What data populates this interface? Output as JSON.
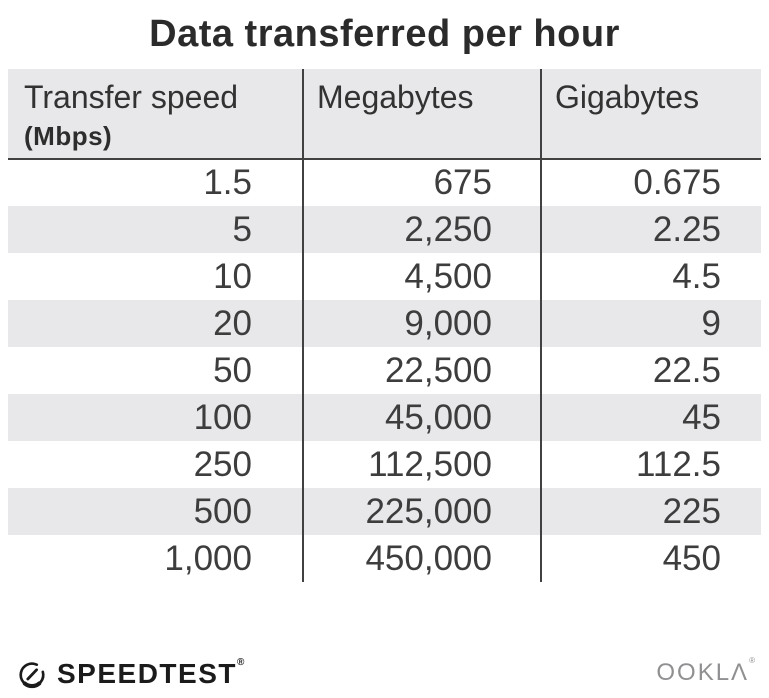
{
  "title": "Data transferred per hour",
  "table": {
    "headers": [
      {
        "line1": "Transfer speed",
        "line2": "(Mbps)"
      },
      {
        "line1": "Megabytes"
      },
      {
        "line1": "Gigabytes"
      }
    ],
    "rows": [
      [
        "1.5",
        "675",
        "0.675"
      ],
      [
        "5",
        "2,250",
        "2.25"
      ],
      [
        "10",
        "4,500",
        "4.5"
      ],
      [
        "20",
        "9,000",
        "9"
      ],
      [
        "50",
        "22,500",
        "22.5"
      ],
      [
        "100",
        "45,000",
        "45"
      ],
      [
        "250",
        "112,500",
        "112.5"
      ],
      [
        "500",
        "225,000",
        "225"
      ],
      [
        "1,000",
        "450,000",
        "450"
      ]
    ]
  },
  "chart_data": {
    "type": "table",
    "title": "Data transferred per hour",
    "columns": [
      "Transfer speed (Mbps)",
      "Megabytes",
      "Gigabytes"
    ],
    "rows": [
      [
        1.5,
        675,
        0.675
      ],
      [
        5,
        2250,
        2.25
      ],
      [
        10,
        4500,
        4.5
      ],
      [
        20,
        9000,
        9
      ],
      [
        50,
        22500,
        22.5
      ],
      [
        100,
        45000,
        45
      ],
      [
        250,
        112500,
        112.5
      ],
      [
        500,
        225000,
        225
      ],
      [
        1000,
        450000,
        450
      ]
    ],
    "layout": {
      "zebra_stripes": true,
      "stripe_color": "#e8e7ea",
      "divider_color": "#414141"
    }
  },
  "footer": {
    "speedtest_label": "SPEEDTEST",
    "speedtest_trademark": "®",
    "speedtest_icon": "speedtest-gauge-icon",
    "ookla_label": "OOKLΛ",
    "ookla_trademark": "®"
  },
  "colors": {
    "background": "#ffffff",
    "stripe": "#e8e7ea",
    "line": "#414141",
    "title_text": "#2b2b2b",
    "body_text": "#3d3d3d",
    "speedtest_black": "#1b1b1b",
    "ookla_gray": "#909092"
  }
}
